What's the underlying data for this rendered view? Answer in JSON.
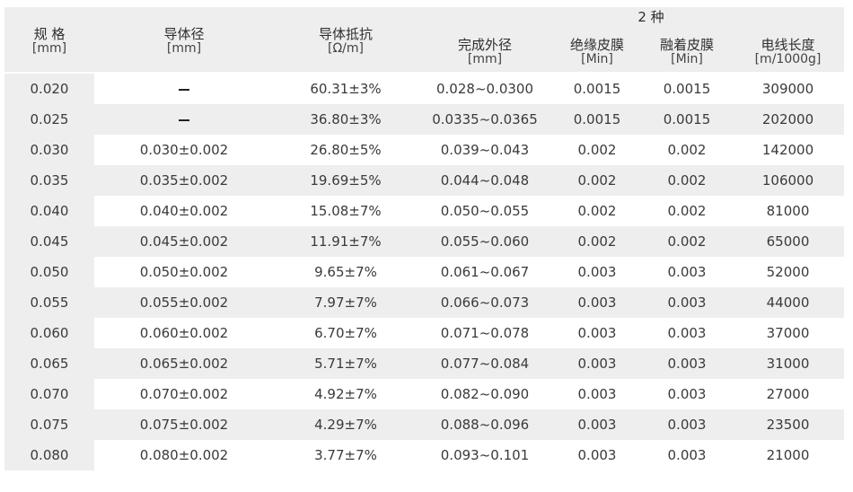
{
  "header": {
    "group_label": "2 种",
    "columns": [
      {
        "title": "规 格",
        "unit": "[mm]"
      },
      {
        "title": "导体径",
        "unit": "[mm]"
      },
      {
        "title": "导体抵抗",
        "unit": "[Ω/m]"
      },
      {
        "title": "完成外径",
        "unit": "[mm]"
      },
      {
        "title": "绝缘皮膜",
        "unit": "[Min]"
      },
      {
        "title": "融着皮膜",
        "unit": "[Min]"
      },
      {
        "title": "电线长度",
        "unit": "[m/1000g]"
      }
    ]
  },
  "rows": [
    [
      "0.020",
      "",
      "60.31±3%",
      "0.028~0.0300",
      "0.0015",
      "0.0015",
      "309000"
    ],
    [
      "0.025",
      "",
      "36.80±3%",
      "0.0335~0.0365",
      "0.0015",
      "0.0015",
      "202000"
    ],
    [
      "0.030",
      "0.030±0.002",
      "26.80±5%",
      "0.039~0.043",
      "0.002",
      "0.002",
      "142000"
    ],
    [
      "0.035",
      "0.035±0.002",
      "19.69±5%",
      "0.044~0.048",
      "0.002",
      "0.002",
      "106000"
    ],
    [
      "0.040",
      "0.040±0.002",
      "15.08±7%",
      "0.050~0.055",
      "0.002",
      "0.002",
      "81000"
    ],
    [
      "0.045",
      "0.045±0.002",
      "11.91±7%",
      "0.055~0.060",
      "0.002",
      "0.002",
      "65000"
    ],
    [
      "0.050",
      "0.050±0.002",
      "9.65±7%",
      "0.061~0.067",
      "0.003",
      "0.003",
      "52000"
    ],
    [
      "0.055",
      "0.055±0.002",
      "7.97±7%",
      "0.066~0.073",
      "0.003",
      "0.003",
      "44000"
    ],
    [
      "0.060",
      "0.060±0.002",
      "6.70±7%",
      "0.071~0.078",
      "0.003",
      "0.003",
      "37000"
    ],
    [
      "0.065",
      "0.065±0.002",
      "5.71±7%",
      "0.077~0.084",
      "0.003",
      "0.003",
      "31000"
    ],
    [
      "0.070",
      "0.070±0.002",
      "4.92±7%",
      "0.082~0.090",
      "0.003",
      "0.003",
      "27000"
    ],
    [
      "0.075",
      "0.075±0.002",
      "4.29±7%",
      "0.088~0.096",
      "0.003",
      "0.003",
      "23500"
    ],
    [
      "0.080",
      "0.080±0.002",
      "3.77±7%",
      "0.093~0.101",
      "0.003",
      "0.003",
      "21000"
    ]
  ]
}
